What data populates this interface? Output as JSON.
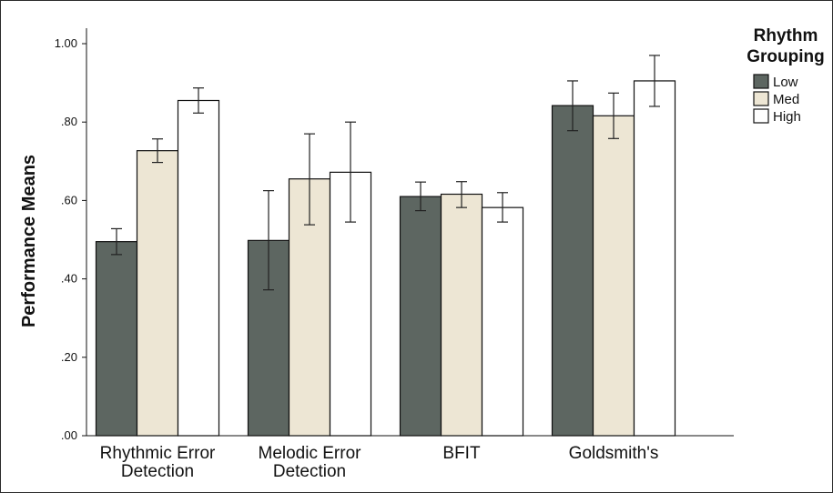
{
  "chart_data": {
    "type": "bar",
    "title": "",
    "xlabel": "",
    "ylabel": "Performance Means",
    "ylim": [
      0,
      1
    ],
    "yticks": [
      ".00",
      ".20",
      ".40",
      ".60",
      ".80",
      "1.00"
    ],
    "grid": false,
    "legend": {
      "title_lines": [
        "Rhythm",
        "Grouping"
      ],
      "position": "top-right"
    },
    "categories": [
      [
        "Rhythmic Error",
        "Detection"
      ],
      [
        "Melodic Error",
        "Detection"
      ],
      [
        "BFIT"
      ],
      [
        "Goldsmith's"
      ]
    ],
    "series": [
      {
        "name": "Low",
        "color": "#5d6661",
        "values": [
          0.495,
          0.498,
          0.61,
          0.842
        ],
        "error_low": [
          0.462,
          0.372,
          0.574,
          0.778
        ],
        "error_high": [
          0.528,
          0.625,
          0.647,
          0.905
        ]
      },
      {
        "name": "Med",
        "color": "#ede6d4",
        "values": [
          0.727,
          0.655,
          0.616,
          0.816
        ],
        "error_low": [
          0.697,
          0.538,
          0.582,
          0.758
        ],
        "error_high": [
          0.757,
          0.77,
          0.648,
          0.874
        ]
      },
      {
        "name": "High",
        "color": "#ffffff",
        "values": [
          0.855,
          0.672,
          0.582,
          0.905
        ],
        "error_low": [
          0.823,
          0.545,
          0.545,
          0.84
        ],
        "error_high": [
          0.887,
          0.8,
          0.62,
          0.97
        ]
      }
    ]
  }
}
